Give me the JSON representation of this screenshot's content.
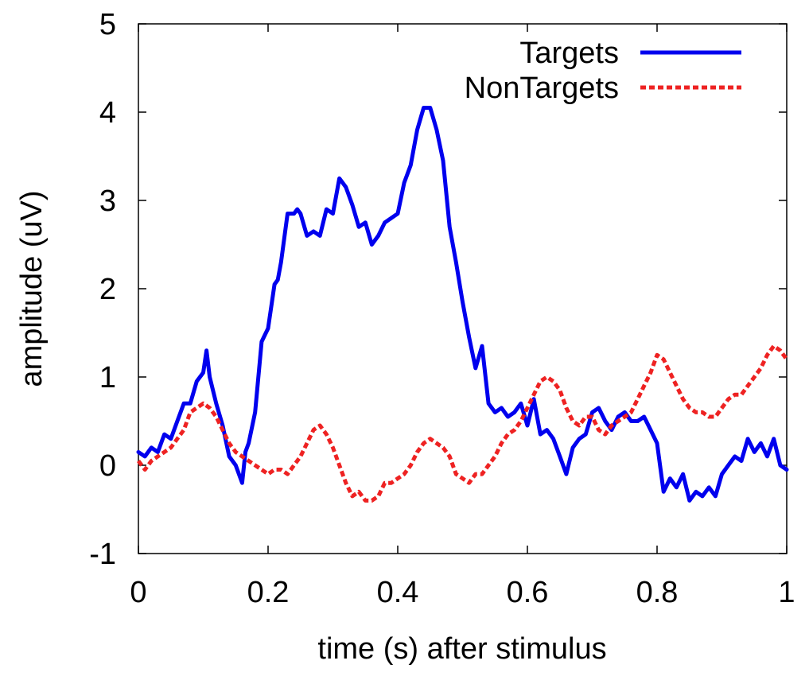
{
  "chart_data": {
    "type": "line",
    "title": "",
    "xlabel": "time (s) after stimulus",
    "ylabel": "amplitude (uV)",
    "xlim": [
      0,
      1
    ],
    "ylim": [
      -1,
      5
    ],
    "xticks": [
      0,
      0.2,
      0.4,
      0.6,
      0.8,
      1
    ],
    "xtick_labels": [
      "0",
      "0.2",
      "0.4",
      "0.6",
      "0.8",
      "1"
    ],
    "yticks": [
      -1,
      0,
      1,
      2,
      3,
      4,
      5
    ],
    "ytick_labels": [
      "-1",
      "0",
      "1",
      "2",
      "3",
      "4",
      "5"
    ],
    "grid": false,
    "legend": "top-right",
    "series": [
      {
        "name": "Targets",
        "color": "#0000ee",
        "dash": "solid",
        "x": [
          0,
          0.01,
          0.02,
          0.03,
          0.04,
          0.05,
          0.06,
          0.07,
          0.08,
          0.09,
          0.1,
          0.105,
          0.11,
          0.12,
          0.13,
          0.14,
          0.15,
          0.16,
          0.165,
          0.17,
          0.18,
          0.19,
          0.2,
          0.21,
          0.215,
          0.22,
          0.23,
          0.24,
          0.245,
          0.25,
          0.26,
          0.27,
          0.28,
          0.29,
          0.3,
          0.31,
          0.32,
          0.33,
          0.34,
          0.35,
          0.36,
          0.37,
          0.38,
          0.39,
          0.4,
          0.41,
          0.42,
          0.43,
          0.44,
          0.45,
          0.46,
          0.47,
          0.48,
          0.49,
          0.5,
          0.51,
          0.52,
          0.53,
          0.54,
          0.55,
          0.56,
          0.57,
          0.58,
          0.59,
          0.6,
          0.61,
          0.62,
          0.63,
          0.64,
          0.65,
          0.66,
          0.67,
          0.68,
          0.69,
          0.7,
          0.71,
          0.72,
          0.73,
          0.74,
          0.75,
          0.76,
          0.77,
          0.78,
          0.79,
          0.8,
          0.81,
          0.82,
          0.83,
          0.84,
          0.85,
          0.86,
          0.87,
          0.88,
          0.89,
          0.9,
          0.91,
          0.92,
          0.93,
          0.94,
          0.95,
          0.96,
          0.97,
          0.98,
          0.99,
          1.0
        ],
        "y": [
          0.15,
          0.1,
          0.2,
          0.15,
          0.35,
          0.3,
          0.5,
          0.7,
          0.7,
          0.95,
          1.05,
          1.3,
          1.0,
          0.7,
          0.45,
          0.1,
          0.0,
          -0.2,
          0.15,
          0.25,
          0.6,
          1.4,
          1.55,
          2.05,
          2.1,
          2.3,
          2.85,
          2.85,
          2.9,
          2.85,
          2.6,
          2.65,
          2.6,
          2.9,
          2.85,
          3.25,
          3.15,
          2.95,
          2.7,
          2.75,
          2.5,
          2.6,
          2.75,
          2.8,
          2.85,
          3.2,
          3.4,
          3.8,
          4.05,
          4.05,
          3.8,
          3.45,
          2.7,
          2.3,
          1.85,
          1.45,
          1.1,
          1.35,
          0.7,
          0.6,
          0.65,
          0.55,
          0.6,
          0.7,
          0.45,
          0.75,
          0.35,
          0.4,
          0.3,
          0.1,
          -0.1,
          0.2,
          0.3,
          0.35,
          0.6,
          0.65,
          0.5,
          0.4,
          0.55,
          0.6,
          0.5,
          0.5,
          0.55,
          0.4,
          0.25,
          -0.3,
          -0.15,
          -0.25,
          -0.1,
          -0.4,
          -0.3,
          -0.35,
          -0.25,
          -0.35,
          -0.1,
          0.0,
          0.1,
          0.05,
          0.3,
          0.15,
          0.25,
          0.1,
          0.3,
          0.0,
          -0.05
        ],
        "x_note": ""
      },
      {
        "name": "NonTargets",
        "color": "#ee2222",
        "dash": "dashed",
        "x": [
          0,
          0.01,
          0.02,
          0.03,
          0.04,
          0.05,
          0.06,
          0.07,
          0.08,
          0.09,
          0.1,
          0.11,
          0.12,
          0.13,
          0.14,
          0.15,
          0.16,
          0.17,
          0.18,
          0.19,
          0.2,
          0.21,
          0.22,
          0.23,
          0.24,
          0.25,
          0.26,
          0.27,
          0.28,
          0.29,
          0.3,
          0.31,
          0.32,
          0.33,
          0.34,
          0.35,
          0.36,
          0.37,
          0.38,
          0.39,
          0.4,
          0.41,
          0.42,
          0.43,
          0.44,
          0.45,
          0.46,
          0.47,
          0.48,
          0.49,
          0.5,
          0.51,
          0.52,
          0.53,
          0.54,
          0.55,
          0.56,
          0.57,
          0.58,
          0.59,
          0.6,
          0.61,
          0.62,
          0.63,
          0.64,
          0.65,
          0.66,
          0.67,
          0.68,
          0.69,
          0.7,
          0.71,
          0.72,
          0.73,
          0.74,
          0.75,
          0.76,
          0.77,
          0.78,
          0.79,
          0.8,
          0.81,
          0.82,
          0.83,
          0.84,
          0.85,
          0.86,
          0.87,
          0.88,
          0.89,
          0.9,
          0.91,
          0.92,
          0.93,
          0.94,
          0.95,
          0.96,
          0.97,
          0.98,
          0.99,
          1.0
        ],
        "y": [
          0.05,
          -0.05,
          0.05,
          0.1,
          0.15,
          0.2,
          0.3,
          0.4,
          0.6,
          0.65,
          0.7,
          0.65,
          0.55,
          0.4,
          0.25,
          0.15,
          0.1,
          0.05,
          0.0,
          -0.05,
          -0.1,
          -0.05,
          -0.05,
          -0.1,
          0.0,
          0.1,
          0.25,
          0.4,
          0.45,
          0.35,
          0.2,
          0.0,
          -0.2,
          -0.35,
          -0.3,
          -0.4,
          -0.4,
          -0.35,
          -0.2,
          -0.2,
          -0.15,
          -0.1,
          0.0,
          0.15,
          0.25,
          0.3,
          0.25,
          0.2,
          0.1,
          -0.1,
          -0.15,
          -0.2,
          -0.1,
          -0.1,
          0.0,
          0.1,
          0.25,
          0.35,
          0.4,
          0.5,
          0.65,
          0.8,
          0.95,
          1.0,
          0.95,
          0.85,
          0.65,
          0.5,
          0.45,
          0.55,
          0.55,
          0.4,
          0.35,
          0.45,
          0.5,
          0.55,
          0.6,
          0.75,
          0.9,
          1.05,
          1.25,
          1.2,
          1.05,
          0.9,
          0.75,
          0.65,
          0.6,
          0.6,
          0.55,
          0.55,
          0.65,
          0.75,
          0.8,
          0.8,
          0.9,
          1.0,
          1.1,
          1.25,
          1.35,
          1.3,
          1.2
        ]
      }
    ]
  }
}
